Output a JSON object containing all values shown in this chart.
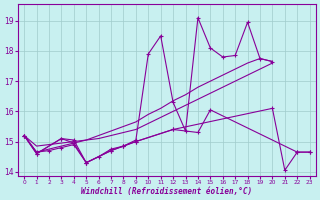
{
  "xlabel": "Windchill (Refroidissement éolien,°C)",
  "bg_color": "#c8f0f0",
  "grid_color": "#a0cccc",
  "line_color": "#880099",
  "yticks": [
    14,
    15,
    16,
    17,
    18,
    19
  ],
  "xticks": [
    0,
    1,
    2,
    3,
    4,
    5,
    6,
    7,
    8,
    9,
    10,
    11,
    12,
    13,
    14,
    15,
    16,
    17,
    18,
    19,
    20,
    21,
    22,
    23
  ],
  "ylim": [
    13.85,
    19.55
  ],
  "xlim": [
    -0.5,
    23.5
  ],
  "s_upper_x": [
    0,
    1,
    2,
    3,
    4,
    5,
    6,
    7,
    8,
    9,
    10,
    11,
    12,
    13,
    14,
    15,
    16,
    17,
    18,
    19,
    20
  ],
  "s_upper_y": [
    15.2,
    14.65,
    14.75,
    14.85,
    14.95,
    15.05,
    15.2,
    15.35,
    15.5,
    15.65,
    15.9,
    16.1,
    16.35,
    16.55,
    16.8,
    17.0,
    17.2,
    17.4,
    17.6,
    17.75,
    17.65
  ],
  "s_zigzag_x": [
    0,
    1,
    2,
    3,
    4,
    5,
    6,
    7,
    8,
    9,
    10,
    11,
    12,
    13,
    14,
    15,
    16,
    17,
    18,
    19,
    20
  ],
  "s_zigzag_y": [
    15.2,
    14.65,
    14.7,
    14.8,
    14.9,
    14.3,
    14.5,
    14.75,
    14.85,
    15.05,
    17.9,
    18.5,
    16.3,
    15.35,
    19.1,
    18.1,
    17.8,
    17.85,
    18.95,
    17.75,
    17.65
  ],
  "s_flat1_x": [
    0,
    1,
    3,
    4,
    5,
    7,
    8,
    9,
    12,
    14,
    15,
    22,
    23
  ],
  "s_flat1_y": [
    15.2,
    14.6,
    15.1,
    15.05,
    14.3,
    14.7,
    14.85,
    15.0,
    15.4,
    15.3,
    16.05,
    14.65,
    14.65
  ],
  "s_flat2_x": [
    0,
    1,
    3,
    4,
    5,
    7,
    8,
    9,
    12,
    20,
    21,
    22,
    23
  ],
  "s_flat2_y": [
    15.2,
    14.6,
    15.1,
    14.95,
    14.3,
    14.7,
    14.85,
    15.0,
    15.4,
    16.1,
    14.05,
    14.65,
    14.65
  ],
  "s_trend_x": [
    0,
    1,
    2,
    3,
    4,
    5,
    6,
    7,
    8,
    9,
    10,
    11,
    12,
    13,
    14,
    15,
    16,
    17,
    18,
    19,
    20
  ],
  "s_trend_y": [
    15.2,
    14.85,
    14.9,
    14.95,
    15.0,
    15.05,
    15.1,
    15.2,
    15.3,
    15.4,
    15.6,
    15.8,
    16.0,
    16.2,
    16.4,
    16.6,
    16.8,
    17.0,
    17.2,
    17.4,
    17.6
  ]
}
